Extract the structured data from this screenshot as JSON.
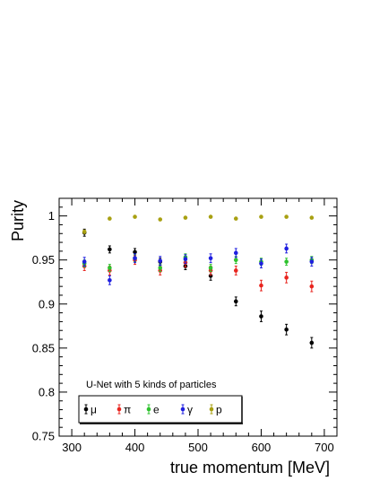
{
  "chart_data": {
    "type": "scatter",
    "ylabel": "Purity",
    "xlabel": "true momentum [MeV]",
    "xlim": [
      280,
      720
    ],
    "ylim": [
      0.75,
      1.02
    ],
    "x_ticks": [
      300,
      400,
      500,
      600,
      700
    ],
    "x_tick_labels": [
      "300",
      "400",
      "500",
      "600",
      "700"
    ],
    "y_ticks": [
      0.75,
      0.8,
      0.85,
      0.9,
      0.95,
      1.0
    ],
    "y_tick_labels": [
      "0.75",
      "0.8",
      "0.85",
      "0.9",
      "0.95",
      "1"
    ],
    "legend_title": "U-Net with 5 kinds of particles",
    "legend_placement": "bottom-left",
    "grid": false,
    "series": [
      {
        "name": "μ",
        "color": "#000000",
        "x": [
          320,
          360,
          400,
          440,
          480,
          520,
          560,
          600,
          640,
          680
        ],
        "y": [
          0.981,
          0.962,
          0.959,
          0.948,
          0.943,
          0.932,
          0.903,
          0.886,
          0.871,
          0.856
        ],
        "err": [
          0.004,
          0.004,
          0.004,
          0.004,
          0.004,
          0.005,
          0.005,
          0.006,
          0.006,
          0.006
        ]
      },
      {
        "name": "π",
        "color": "#e8251f",
        "x": [
          320,
          360,
          400,
          440,
          480,
          520,
          560,
          600,
          640,
          680
        ],
        "y": [
          0.943,
          0.938,
          0.95,
          0.938,
          0.947,
          0.938,
          0.938,
          0.921,
          0.93,
          0.92
        ],
        "err": [
          0.005,
          0.005,
          0.005,
          0.005,
          0.005,
          0.005,
          0.005,
          0.006,
          0.006,
          0.006
        ]
      },
      {
        "name": "e",
        "color": "#2ec22e",
        "x": [
          320,
          360,
          400,
          440,
          480,
          520,
          560,
          600,
          640,
          680
        ],
        "y": [
          0.946,
          0.941,
          0.952,
          0.941,
          0.953,
          0.941,
          0.95,
          0.948,
          0.948,
          0.95
        ],
        "err": [
          0.004,
          0.004,
          0.004,
          0.004,
          0.004,
          0.004,
          0.004,
          0.004,
          0.004,
          0.004
        ]
      },
      {
        "name": "γ",
        "color": "#1f1fe0",
        "x": [
          320,
          360,
          400,
          440,
          480,
          520,
          560,
          600,
          640,
          680
        ],
        "y": [
          0.948,
          0.927,
          0.952,
          0.949,
          0.951,
          0.952,
          0.958,
          0.946,
          0.963,
          0.948
        ],
        "err": [
          0.005,
          0.005,
          0.005,
          0.005,
          0.005,
          0.005,
          0.005,
          0.005,
          0.005,
          0.005
        ]
      },
      {
        "name": "p",
        "color": "#a8a012",
        "x": [
          320,
          360,
          400,
          440,
          480,
          520,
          560,
          600,
          640,
          680
        ],
        "y": [
          0.982,
          0.997,
          0.999,
          0.996,
          0.998,
          0.999,
          0.997,
          0.999,
          0.999,
          0.998
        ],
        "err": [
          0.002,
          0.001,
          0.001,
          0.001,
          0.001,
          0.001,
          0.001,
          0.001,
          0.001,
          0.001
        ]
      }
    ]
  }
}
